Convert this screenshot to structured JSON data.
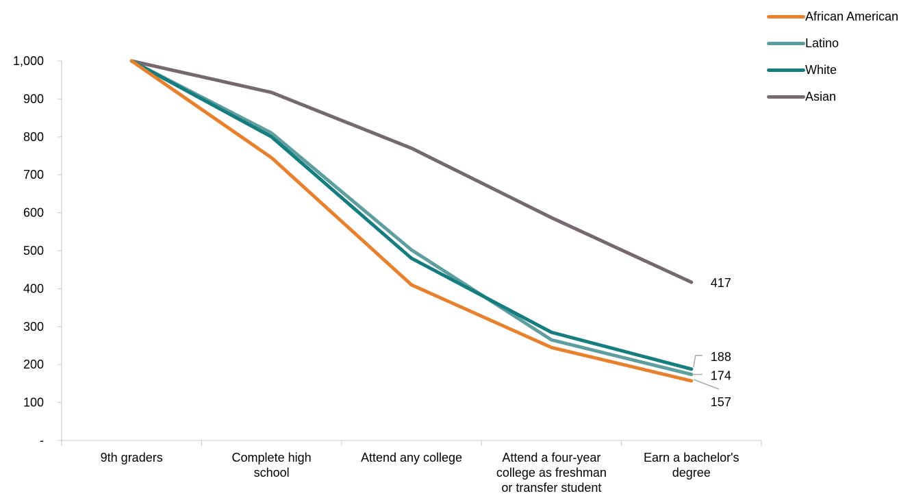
{
  "chart_data": {
    "type": "line",
    "categories": [
      [
        "9th graders"
      ],
      [
        "Complete high",
        "school"
      ],
      [
        "Attend any college"
      ],
      [
        "Attend a four-year",
        "college as freshman",
        "or transfer student"
      ],
      [
        "Earn a bachelor's",
        "degree"
      ]
    ],
    "y_ticks": [
      {
        "value": 0,
        "label": "-"
      },
      {
        "value": 100,
        "label": "100"
      },
      {
        "value": 200,
        "label": "200"
      },
      {
        "value": 300,
        "label": "300"
      },
      {
        "value": 400,
        "label": "400"
      },
      {
        "value": 500,
        "label": "500"
      },
      {
        "value": 600,
        "label": "600"
      },
      {
        "value": 700,
        "label": "700"
      },
      {
        "value": 800,
        "label": "800"
      },
      {
        "value": 900,
        "label": "900"
      },
      {
        "value": 1000,
        "label": "1,000"
      }
    ],
    "ylim": [
      0,
      1000
    ],
    "grid": false,
    "legend_position": "top-right",
    "series": [
      {
        "name": "African American",
        "color": "#E8812E",
        "values": [
          1000,
          745,
          410,
          245,
          157
        ],
        "end_label": "157"
      },
      {
        "name": "Latino",
        "color": "#5E9E9E",
        "values": [
          1000,
          810,
          502,
          265,
          174
        ],
        "end_label": "174"
      },
      {
        "name": "White",
        "color": "#167D7F",
        "values": [
          1000,
          800,
          480,
          285,
          188
        ],
        "end_label": "188"
      },
      {
        "name": "Asian",
        "color": "#756870",
        "values": [
          1000,
          917,
          770,
          587,
          417
        ],
        "end_label": "417"
      }
    ],
    "legend_order": [
      0,
      1,
      2,
      3
    ],
    "draw_order": [
      3,
      1,
      2,
      0
    ]
  }
}
